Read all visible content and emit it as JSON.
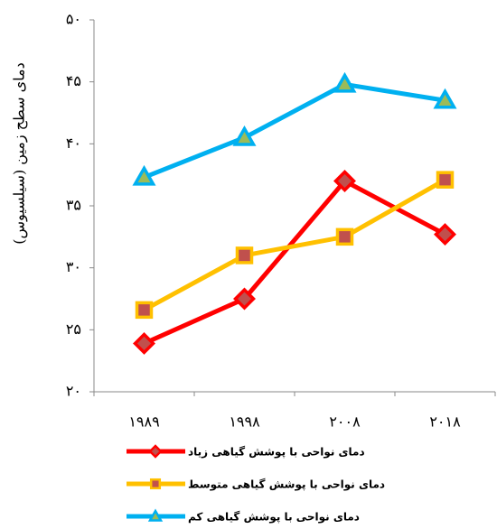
{
  "chart_data": {
    "type": "line",
    "y_label": "دمای سطح زمین (سیلسیوس)",
    "categories": [
      "۱۹۸۹",
      "۱۹۹۸",
      "۲۰۰۸",
      "۲۰۱۸"
    ],
    "series": [
      {
        "name": "دمای نواحی با پوشش گیاهی زیاد",
        "color": "#ff0000",
        "marker": "diamond",
        "marker_fill": "#c0504d",
        "values": [
          23.9,
          27.5,
          37.0,
          32.7
        ]
      },
      {
        "name": "دمای نواحی با پوشش گیاهی متوسط",
        "color": "#ffc000",
        "marker": "square",
        "marker_fill": "#c0504d",
        "values": [
          26.6,
          31.0,
          32.5,
          37.1
        ]
      },
      {
        "name": "دمای نواحی با پوشش گیاهی کم",
        "color": "#00b0f0",
        "marker": "triangle",
        "marker_fill": "#9bbb59",
        "values": [
          37.3,
          40.5,
          44.8,
          43.5
        ]
      }
    ],
    "ylim": [
      20,
      50
    ],
    "yticks": [
      {
        "value": 20,
        "label": "۲۰"
      },
      {
        "value": 25,
        "label": "۲۵"
      },
      {
        "value": 30,
        "label": "۳۰"
      },
      {
        "value": 35,
        "label": "۳۵"
      },
      {
        "value": 40,
        "label": "۴۰"
      },
      {
        "value": 45,
        "label": "۴۵"
      },
      {
        "value": 50,
        "label": "۵۰"
      }
    ],
    "grid": false
  }
}
